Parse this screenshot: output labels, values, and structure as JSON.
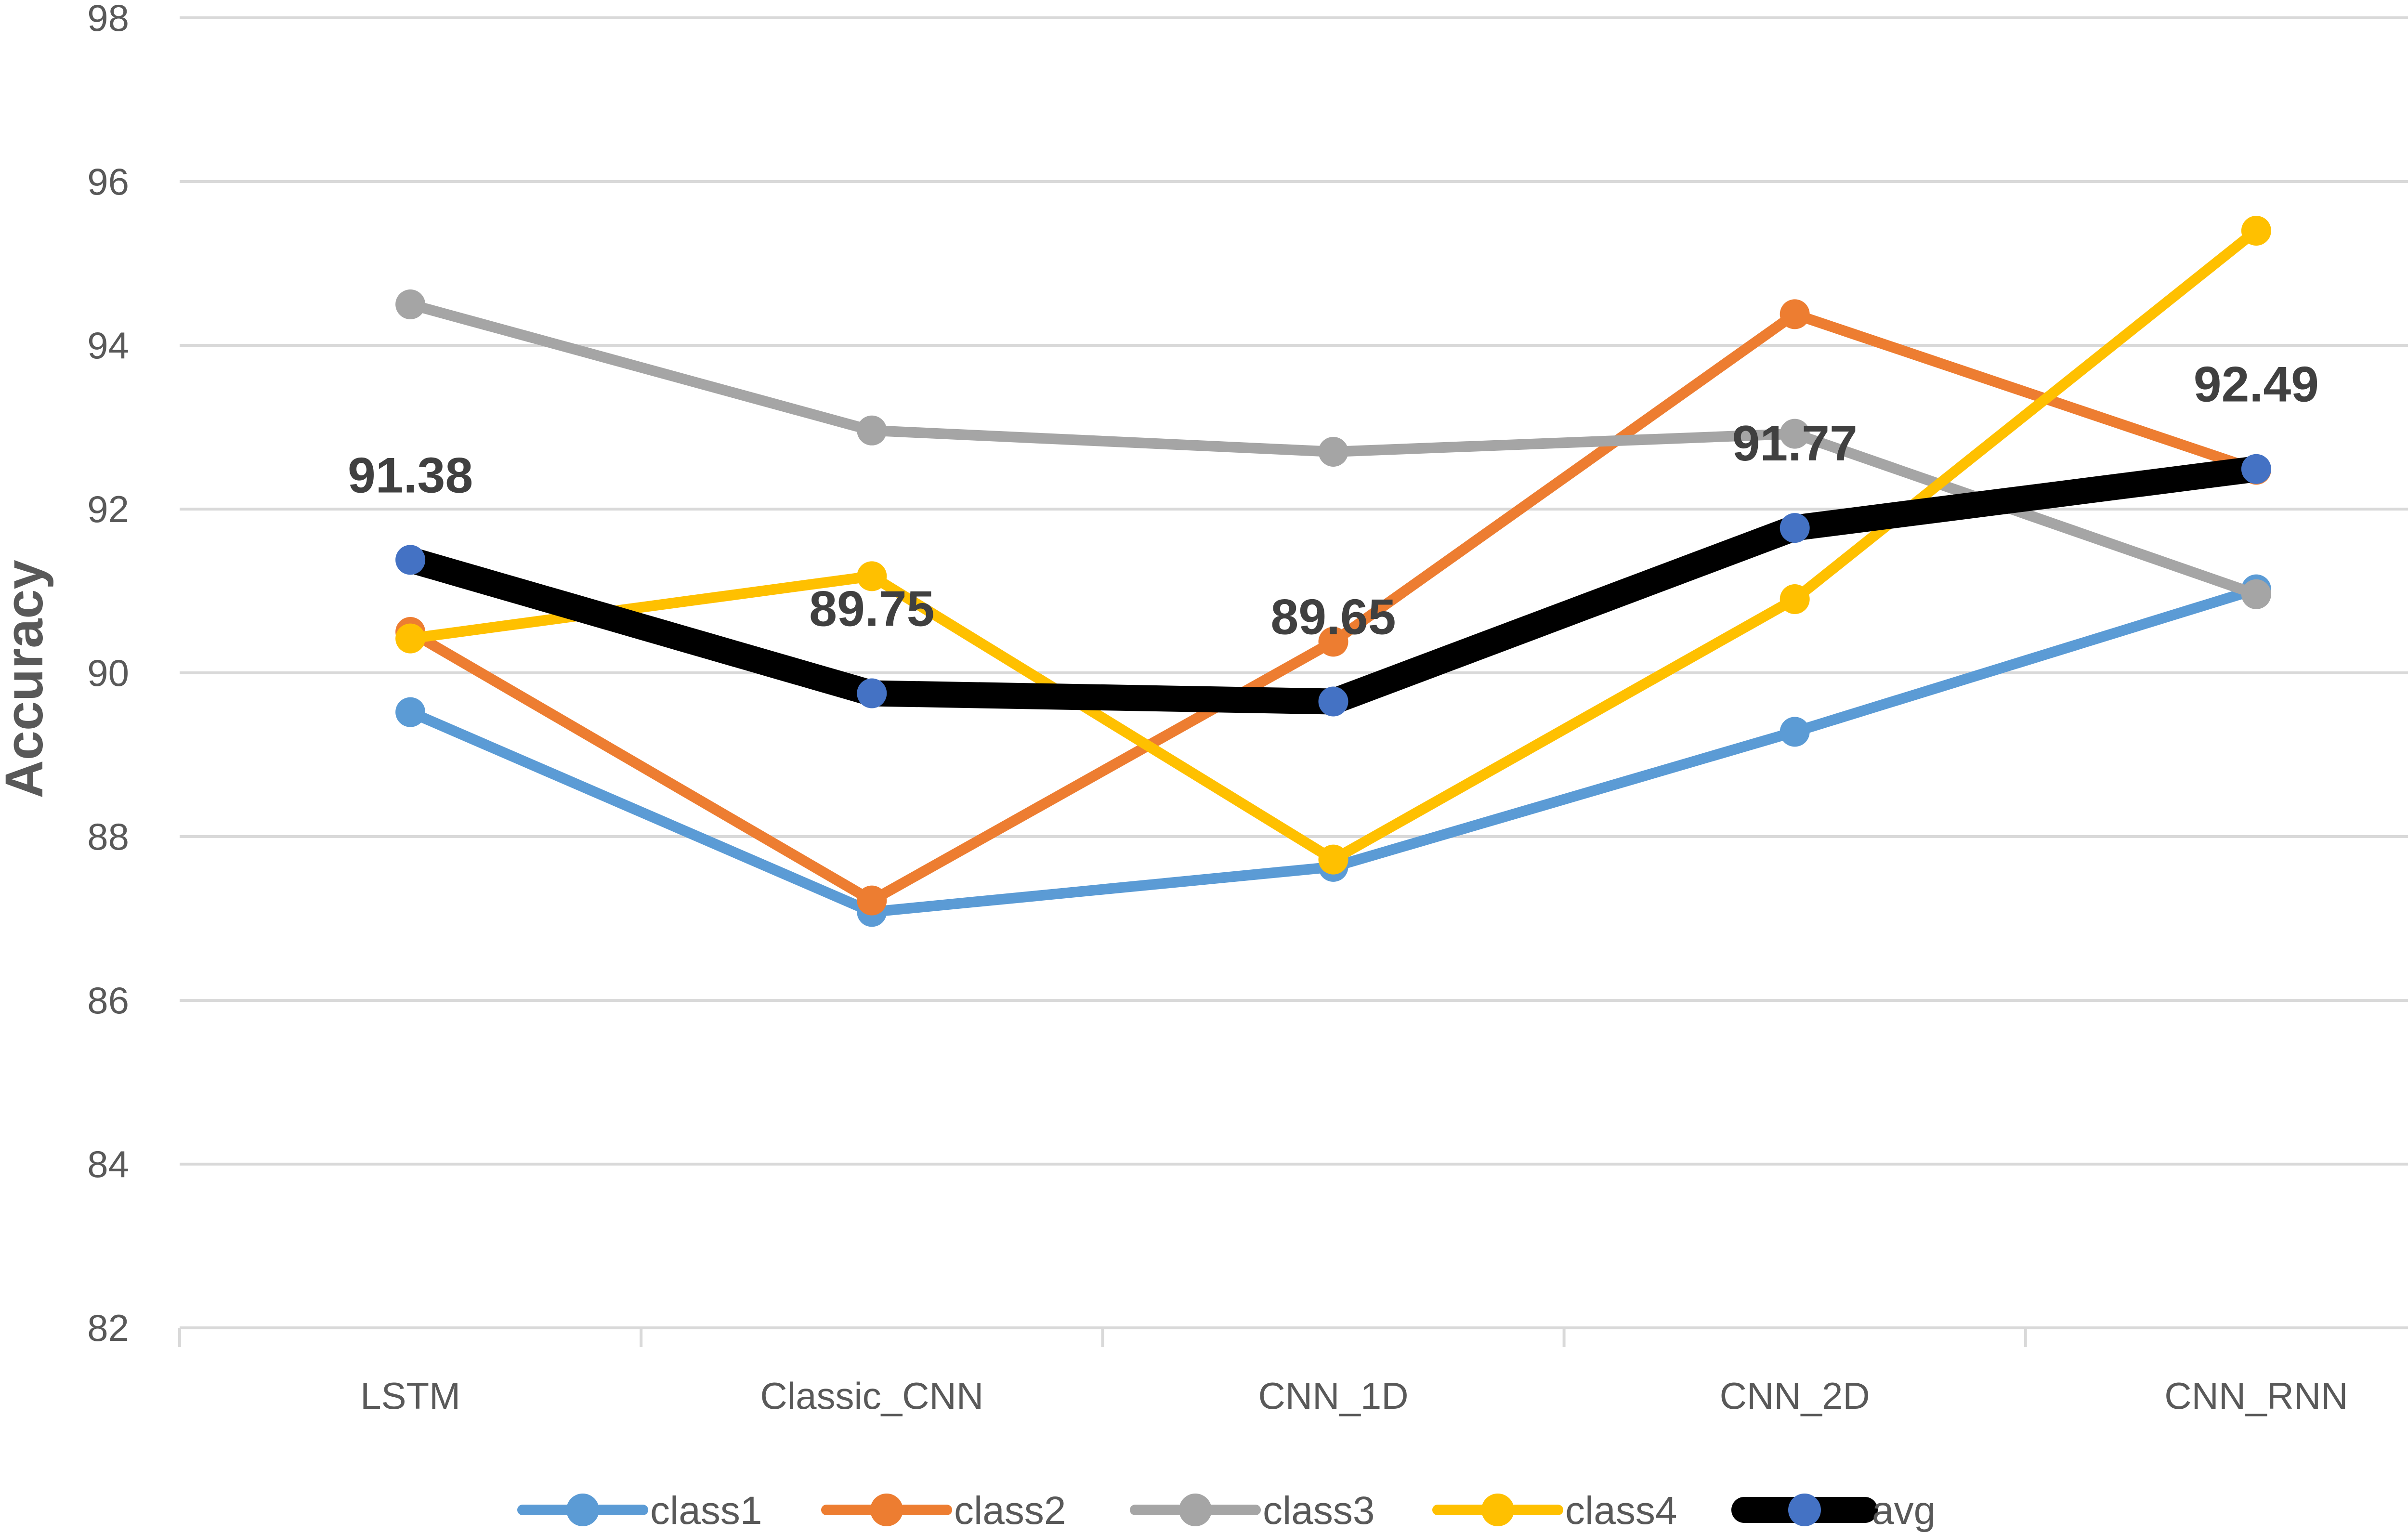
{
  "chart_data": {
    "type": "line",
    "title": "",
    "xlabel": "",
    "ylabel": "Accuracy",
    "ylim": [
      82,
      98
    ],
    "yticks": [
      82,
      84,
      86,
      88,
      90,
      92,
      94,
      96,
      98
    ],
    "grid": true,
    "legend_position": "bottom",
    "categories": [
      "LSTM",
      "Classic_CNN",
      "CNN_1D",
      "CNN_2D",
      "CNN_RNN"
    ],
    "series": [
      {
        "name": "class1",
        "color": "#5B9BD5",
        "values": [
          89.52,
          87.08,
          87.63,
          89.28,
          91.02
        ]
      },
      {
        "name": "class2",
        "color": "#ED7D31",
        "values": [
          90.5,
          87.22,
          90.38,
          94.38,
          92.48
        ]
      },
      {
        "name": "class3",
        "color": "#A5A5A5",
        "values": [
          94.5,
          92.96,
          92.7,
          92.92,
          90.96
        ]
      },
      {
        "name": "class4",
        "color": "#FFC000",
        "values": [
          90.42,
          91.18,
          87.72,
          90.9,
          95.4
        ]
      },
      {
        "name": "avg",
        "color": "#000000",
        "marker_color": "#4472C4",
        "values": [
          91.38,
          89.75,
          89.65,
          91.77,
          92.49
        ]
      }
    ],
    "data_labels": [
      "91.38",
      "89.75",
      "89.65",
      "91.77",
      "92.49"
    ]
  }
}
